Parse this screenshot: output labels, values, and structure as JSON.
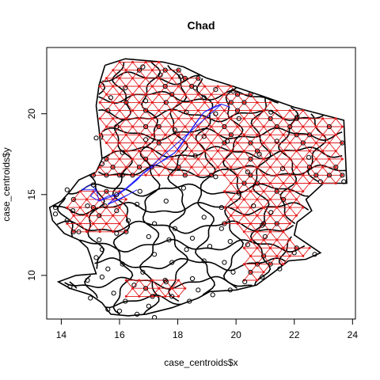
{
  "chart_data": {
    "type": "scatter",
    "title": "Chad",
    "xlabel": "case_centroids$x",
    "ylabel": "case_centroids$y",
    "xlim": [
      13.5,
      24.1
    ],
    "ylim": [
      7.3,
      24.1
    ],
    "x_ticks": [
      14,
      16,
      18,
      20,
      22,
      24
    ],
    "y_ticks": [
      10,
      15,
      20
    ],
    "grid": false,
    "legend": "none",
    "point_style": "open circle",
    "colors": {
      "boundaries": "#000000",
      "points": "#000000",
      "red_network": "#e41a1c",
      "blue_network": "#1f1fff"
    },
    "series": [
      {
        "values": [
          [
            22.9,
            15.8
          ],
          [
            23.7,
            15.8
          ],
          [
            14.2,
            15.3
          ],
          [
            15.1,
            15.6
          ],
          [
            13.8,
            14.2
          ],
          [
            13.8,
            13.8
          ],
          [
            14.9,
            14.3
          ],
          [
            15.3,
            13.7
          ],
          [
            16.6,
            14.4
          ],
          [
            17.2,
            13.2
          ],
          [
            17.9,
            12.9
          ],
          [
            18.5,
            12.3
          ],
          [
            19.1,
            11.8
          ],
          [
            19.8,
            12.1
          ],
          [
            20.4,
            11.9
          ],
          [
            21.0,
            12.4
          ],
          [
            14.2,
            13.4
          ],
          [
            14.6,
            12.7
          ],
          [
            15.3,
            12.2
          ],
          [
            15.9,
            12.6
          ],
          [
            15.2,
            11.1
          ],
          [
            15.6,
            10.4
          ],
          [
            15.4,
            9.9
          ],
          [
            16.1,
            10.7
          ],
          [
            16.8,
            10.2
          ],
          [
            17.2,
            11.3
          ],
          [
            17.8,
            10.8
          ],
          [
            18.3,
            11.6
          ],
          [
            18.9,
            10.9
          ],
          [
            19.6,
            10.8
          ],
          [
            18.5,
            9.8
          ],
          [
            17.6,
            9.6
          ],
          [
            16.5,
            9.4
          ],
          [
            15.8,
            8.9
          ],
          [
            15.0,
            8.6
          ],
          [
            16.2,
            8.4
          ],
          [
            17.0,
            8.1
          ],
          [
            17.8,
            8.7
          ],
          [
            18.4,
            8.4
          ],
          [
            19.2,
            8.8
          ],
          [
            19.8,
            9.1
          ],
          [
            20.3,
            9.6
          ],
          [
            14.3,
            9.3
          ],
          [
            14.9,
            9.7
          ],
          [
            16.0,
            7.8
          ],
          [
            16.6,
            7.6
          ],
          [
            15.6,
            7.9
          ],
          [
            17.2,
            7.4
          ],
          [
            18.7,
            9.1
          ],
          [
            15.4,
            11.6
          ],
          [
            17.0,
            12.4
          ],
          [
            16.3,
            13.4
          ],
          [
            18.9,
            13.6
          ],
          [
            19.5,
            14.2
          ],
          [
            17.6,
            14.6
          ],
          [
            18.2,
            15.4
          ],
          [
            16.1,
            16.2
          ],
          [
            17.1,
            16.7
          ],
          [
            18.6,
            17.4
          ],
          [
            19.3,
            16.1
          ],
          [
            20.1,
            15.1
          ],
          [
            20.6,
            14.3
          ],
          [
            20.9,
            13.1
          ],
          [
            16.7,
            15.2
          ],
          [
            15.9,
            15.0
          ],
          [
            16.8,
            22.9
          ],
          [
            17.4,
            22.4
          ],
          [
            18.1,
            22.3
          ],
          [
            18.6,
            21.6
          ],
          [
            16.2,
            21.6
          ],
          [
            15.7,
            21.0
          ],
          [
            15.6,
            20.2
          ],
          [
            16.9,
            20.8
          ],
          [
            17.6,
            20.7
          ],
          [
            18.3,
            20.1
          ],
          [
            18.9,
            21.0
          ],
          [
            19.3,
            21.5
          ],
          [
            19.9,
            21.4
          ],
          [
            20.5,
            21.2
          ],
          [
            21.2,
            20.1
          ],
          [
            22.1,
            19.8
          ],
          [
            21.4,
            18.3
          ],
          [
            20.8,
            17.5
          ],
          [
            19.7,
            18.3
          ],
          [
            18.9,
            18.6
          ],
          [
            17.9,
            19.0
          ],
          [
            16.9,
            18.4
          ],
          [
            16.1,
            17.6
          ],
          [
            15.4,
            16.9
          ],
          [
            15.2,
            18.5
          ],
          [
            15.9,
            19.2
          ],
          [
            20.4,
            16.4
          ],
          [
            21.6,
            16.6
          ],
          [
            22.5,
            17.3
          ],
          [
            20.1,
            19.7
          ],
          [
            19.3,
            20.0
          ],
          [
            22.0,
            11.4
          ],
          [
            22.7,
            11.3
          ],
          [
            21.5,
            10.4
          ],
          [
            20.9,
            9.9
          ],
          [
            19.9,
            10.2
          ],
          [
            21.2,
            13.9
          ],
          [
            19.5,
            12.9
          ],
          [
            15.5,
            14.3
          ],
          [
            15.9,
            14.0
          ],
          [
            17.7,
            12.2
          ],
          [
            14.4,
            14.0
          ]
        ]
      }
    ],
    "blue_path": [
      [
        14.7,
        15.3
      ],
      [
        15.0,
        15.6
      ],
      [
        15.2,
        15.3
      ],
      [
        15.0,
        14.9
      ],
      [
        15.3,
        14.6
      ],
      [
        15.6,
        14.9
      ],
      [
        15.9,
        15.0
      ],
      [
        16.2,
        15.3
      ],
      [
        16.4,
        15.6
      ],
      [
        16.6,
        15.9
      ],
      [
        16.8,
        16.3
      ],
      [
        17.0,
        16.6
      ],
      [
        17.3,
        16.9
      ],
      [
        17.6,
        17.2
      ],
      [
        17.9,
        17.6
      ],
      [
        18.1,
        18.0
      ],
      [
        18.3,
        18.6
      ],
      [
        18.6,
        19.4
      ],
      [
        18.9,
        20.1
      ],
      [
        19.2,
        20.4
      ],
      [
        19.5,
        20.6
      ],
      [
        19.8,
        20.4
      ],
      [
        15.6,
        14.4
      ],
      [
        16.0,
        14.7
      ],
      [
        16.3,
        15.0
      ],
      [
        16.6,
        15.3
      ]
    ]
  }
}
